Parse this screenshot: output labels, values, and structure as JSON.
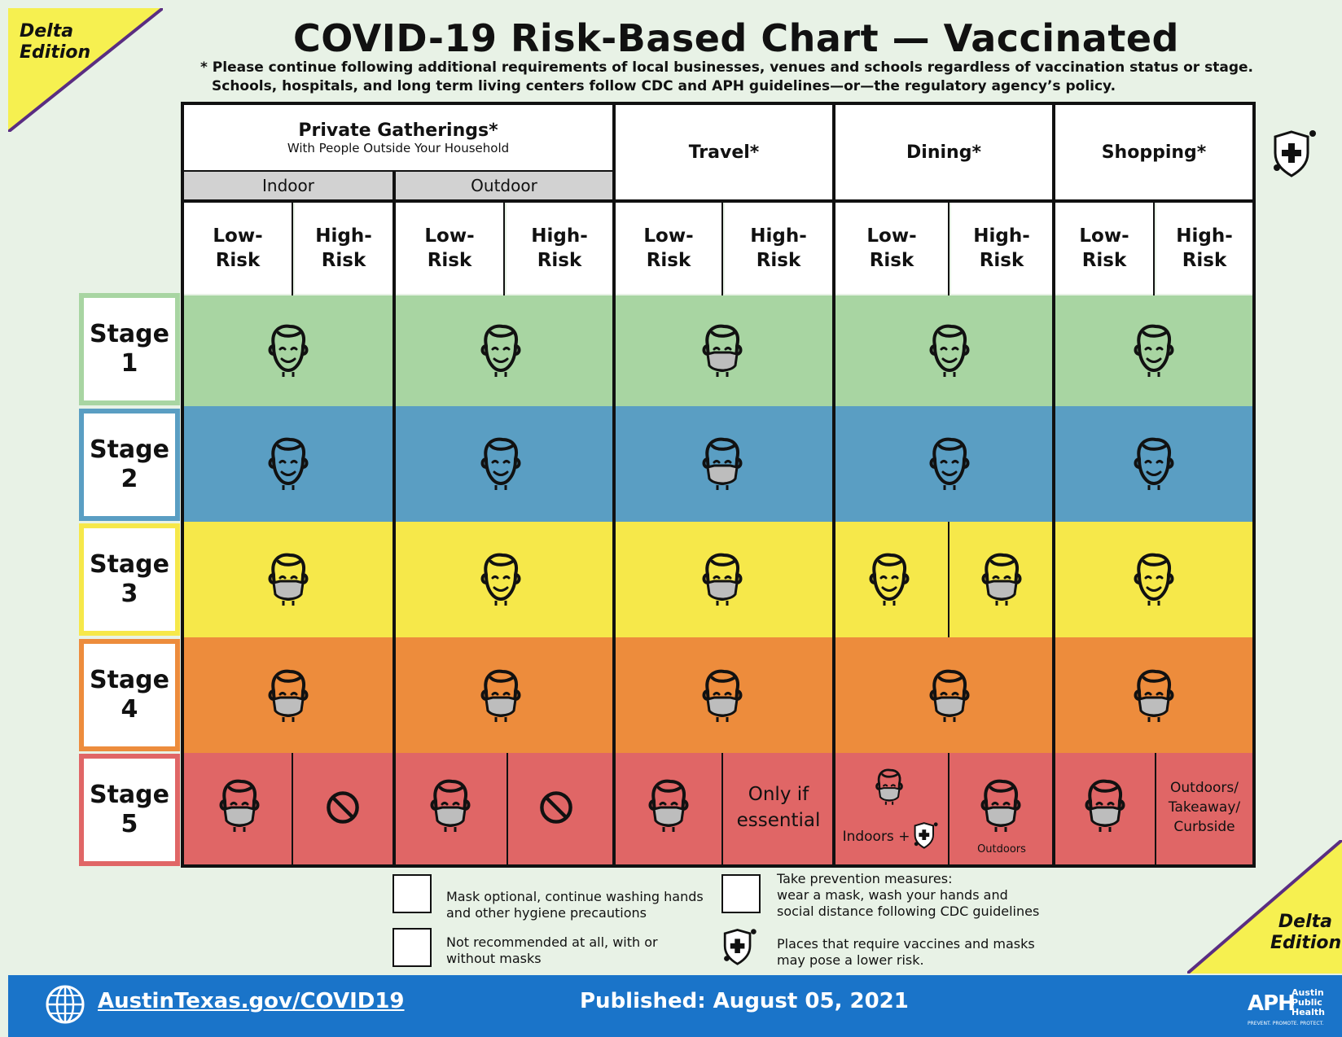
{
  "edition_label": "Delta\nEdition",
  "title": "COVID-19 Risk-Based Chart — Vaccinated",
  "notes": [
    "* Please continue following additional requirements of local businesses, venues and schools regardless of vaccination status or stage.",
    "Schools, hospitals, and long term living centers follow CDC and APH guidelines—or—the regulatory agency’s policy."
  ],
  "headers": {
    "private": "Private Gatherings*",
    "private_sub": "With People Outside Your Household",
    "indoor": "Indoor",
    "outdoor": "Outdoor",
    "travel": "Travel*",
    "dining": "Dining*",
    "shopping": "Shopping*"
  },
  "risk_labels": {
    "low": "Low-\nRisk",
    "high": "High-\nRisk"
  },
  "stages": [
    {
      "label": "Stage\n1",
      "color": "#a8d5a2",
      "border": "#a8d5a2"
    },
    {
      "label": "Stage\n2",
      "color": "#5a9ec3",
      "border": "#5a9ec3"
    },
    {
      "label": "Stage\n3",
      "color": "#f6e84a",
      "border": "#f6e84a"
    },
    {
      "label": "Stage\n4",
      "color": "#ed8c3c",
      "border": "#ed8c3c"
    },
    {
      "label": "Stage\n5",
      "color": "#e06666",
      "border": "#e06666"
    }
  ],
  "cell_texts": {
    "travel_high_stage5": "Only if\nessential",
    "dining_low_stage5": "Indoors +",
    "dining_high_stage5": "Outdoors",
    "shopping_high_stage5": "Outdoors/\nTakeaway/\nCurbside"
  },
  "legend": [
    {
      "icon": "face-icon",
      "text": "Mask optional, continue washing hands\nand other hygiene precautions"
    },
    {
      "icon": "masked-face-icon",
      "text": "Take prevention measures:\nwear a mask, wash your hands and\nsocial distance following CDC guidelines"
    },
    {
      "icon": "no-entry-icon",
      "text": "Not recommended at all, with or\nwithout masks"
    },
    {
      "icon": "shield-plus-icon",
      "text": "Places that require vaccines and masks\nmay pose a lower risk."
    }
  ],
  "footer": {
    "site": "AustinTexas.gov/COVID19",
    "published": "Published: August 05, 2021",
    "org_short": "APH",
    "org_name": "Austin\nPublic\nHealth",
    "tagline": "PREVENT. PROMOTE. PROTECT."
  },
  "colors": {
    "accent_yellow": "#f6f050",
    "corner_border": "#5a2d82",
    "footer_blue": "#1a74c9",
    "mask_gray": "#bdbdbd"
  }
}
